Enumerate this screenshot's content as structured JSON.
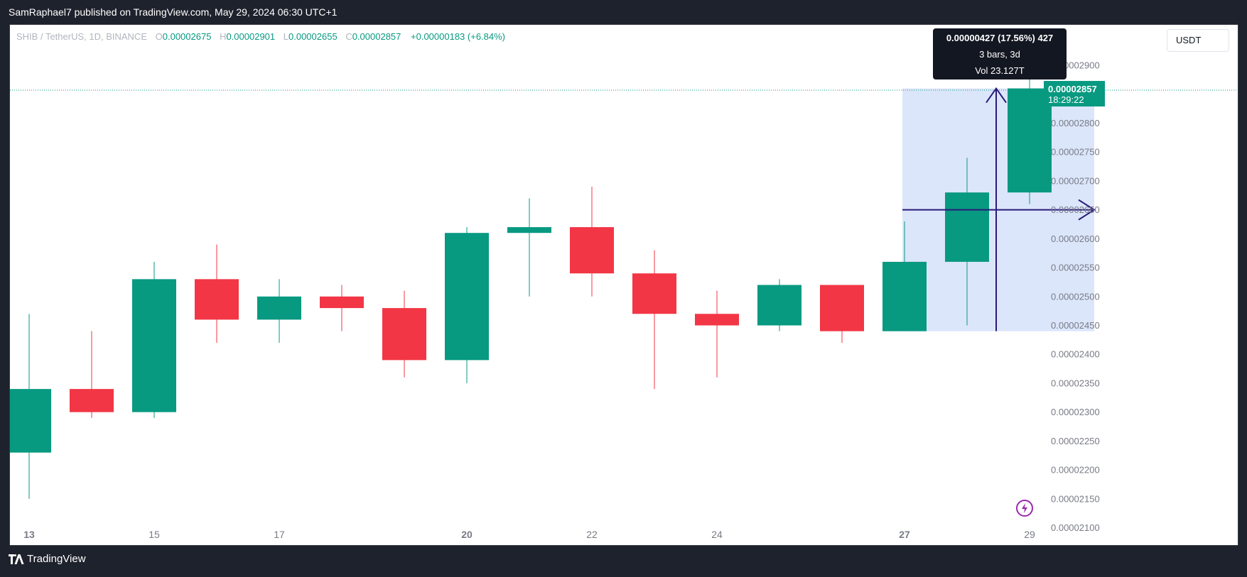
{
  "header": {
    "publisher_text": "SamRaphael7 published on TradingView.com, May 29, 2024 06:30 UTC+1"
  },
  "legend": {
    "symbol": "SHIB / TetherUS, 1D, BINANCE",
    "open_label": "O",
    "open": "0.00002675",
    "high_label": "H",
    "high": "0.00002901",
    "low_label": "L",
    "low": "0.00002655",
    "close_label": "C",
    "close": "0.00002857",
    "change": "+0.00000183 (+6.84%)"
  },
  "currency_button": "USDT",
  "price_label": {
    "price": "0.00002857",
    "countdown": "18:29:22"
  },
  "measure_tooltip": {
    "line1": "0.00000427 (17.56%) 427",
    "line2": "3 bars, 3d",
    "line3": "Vol 23.127T"
  },
  "footer": {
    "brand": "TradingView"
  },
  "colors": {
    "up": "#089981",
    "down": "#f23645",
    "measure_fill": "#dbe6fb",
    "measure_arrow": "#2a1b7a",
    "background": "#1e222d"
  },
  "chart_data": {
    "type": "candlestick",
    "symbol": "SHIB / TetherUS",
    "interval": "1D",
    "exchange": "BINANCE",
    "y_axis": {
      "ylim": [
        2.07e-05,
        2.97e-05
      ],
      "tick_labels": [
        "0.00002900",
        "0.00002850",
        "0.00002800",
        "0.00002750",
        "0.00002700",
        "0.00002650",
        "0.00002600",
        "0.00002550",
        "0.00002500",
        "0.00002450",
        "0.00002400",
        "0.00002350",
        "0.00002300",
        "0.00002250",
        "0.00002200",
        "0.00002150",
        "0.00002100"
      ],
      "tick_values": [
        2.9e-05,
        2.85e-05,
        2.8e-05,
        2.75e-05,
        2.7e-05,
        2.65e-05,
        2.6e-05,
        2.55e-05,
        2.5e-05,
        2.45e-05,
        2.4e-05,
        2.35e-05,
        2.3e-05,
        2.25e-05,
        2.2e-05,
        2.15e-05,
        2.1e-05
      ]
    },
    "x_axis": {
      "tick_labels": [
        "13",
        "15",
        "17",
        "20",
        "22",
        "24",
        "27",
        "29"
      ],
      "tick_bar_index": [
        0,
        2,
        4,
        7,
        9,
        11,
        14,
        16
      ],
      "bold_labels": [
        "13",
        "20",
        "27"
      ]
    },
    "candles": [
      {
        "o": 2.23e-05,
        "h": 2.47e-05,
        "l": 2.15e-05,
        "c": 2.34e-05
      },
      {
        "o": 2.34e-05,
        "h": 2.44e-05,
        "l": 2.29e-05,
        "c": 2.3e-05
      },
      {
        "o": 2.3e-05,
        "h": 2.56e-05,
        "l": 2.29e-05,
        "c": 2.53e-05
      },
      {
        "o": 2.53e-05,
        "h": 2.59e-05,
        "l": 2.42e-05,
        "c": 2.46e-05
      },
      {
        "o": 2.46e-05,
        "h": 2.53e-05,
        "l": 2.42e-05,
        "c": 2.5e-05
      },
      {
        "o": 2.5e-05,
        "h": 2.52e-05,
        "l": 2.44e-05,
        "c": 2.48e-05
      },
      {
        "o": 2.48e-05,
        "h": 2.51e-05,
        "l": 2.36e-05,
        "c": 2.39e-05
      },
      {
        "o": 2.39e-05,
        "h": 2.62e-05,
        "l": 2.35e-05,
        "c": 2.61e-05
      },
      {
        "o": 2.61e-05,
        "h": 2.67e-05,
        "l": 2.5e-05,
        "c": 2.62e-05
      },
      {
        "o": 2.62e-05,
        "h": 2.69e-05,
        "l": 2.5e-05,
        "c": 2.54e-05
      },
      {
        "o": 2.54e-05,
        "h": 2.58e-05,
        "l": 2.34e-05,
        "c": 2.47e-05
      },
      {
        "o": 2.47e-05,
        "h": 2.51e-05,
        "l": 2.36e-05,
        "c": 2.45e-05
      },
      {
        "o": 2.45e-05,
        "h": 2.53e-05,
        "l": 2.44e-05,
        "c": 2.52e-05
      },
      {
        "o": 2.52e-05,
        "h": 2.52e-05,
        "l": 2.42e-05,
        "c": 2.44e-05
      },
      {
        "o": 2.44e-05,
        "h": 2.63e-05,
        "l": 2.44e-05,
        "c": 2.56e-05
      },
      {
        "o": 2.56e-05,
        "h": 2.74e-05,
        "l": 2.45e-05,
        "c": 2.68e-05
      },
      {
        "o": 2.68e-05,
        "h": 2.9e-05,
        "l": 2.66e-05,
        "c": 2.86e-05
      }
    ],
    "last_price": 2.857e-05,
    "measure": {
      "from_bar": 14,
      "to_bar": 17,
      "price_low": 2.44e-05,
      "price_high": 2.86e-05,
      "mid_price": 2.65e-05
    }
  }
}
